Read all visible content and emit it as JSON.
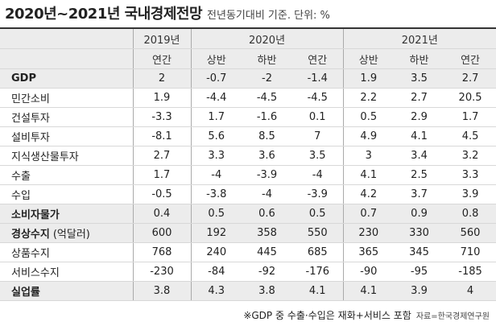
{
  "header": {
    "title": "2020년~2021년 국내경제전망",
    "subtitle": "전년동기대비 기준. 단위: %"
  },
  "table": {
    "years": [
      "2019년",
      "2020년",
      "2021년"
    ],
    "periods": [
      "연간",
      "상반",
      "하반",
      "연간",
      "상반",
      "하반",
      "연간"
    ],
    "rows": [
      {
        "label": "GDP",
        "bold": true,
        "values": [
          2,
          -0.7,
          -2,
          -1.4,
          1.9,
          3.5,
          2.7
        ]
      },
      {
        "label": "민간소비",
        "values": [
          1.9,
          -4.4,
          -4.5,
          -4.5,
          2.2,
          2.7,
          20.5
        ]
      },
      {
        "label": "건설투자",
        "values": [
          -3.3,
          1.7,
          -1.6,
          0.1,
          0.5,
          2.9,
          1.7
        ]
      },
      {
        "label": "설비투자",
        "values": [
          -8.1,
          5.6,
          8.5,
          7,
          4.9,
          4.1,
          4.5
        ]
      },
      {
        "label": "지식생산물투자",
        "values": [
          2.7,
          3.3,
          3.6,
          3.5,
          3,
          3.4,
          3.2
        ]
      },
      {
        "label": "수출",
        "values": [
          1.7,
          -4,
          -3.9,
          -4,
          4.1,
          2.5,
          3.3
        ]
      },
      {
        "label": "수입",
        "values": [
          -0.5,
          -3.8,
          -4,
          -3.9,
          4.2,
          3.7,
          3.9
        ]
      },
      {
        "label": "소비자물가",
        "bold": true,
        "values": [
          0.4,
          0.5,
          0.6,
          0.5,
          0.7,
          0.9,
          0.8
        ]
      },
      {
        "label": "경상수지",
        "unit": "(억달러)",
        "bold": true,
        "values": [
          600,
          192,
          358,
          550,
          230,
          330,
          560
        ]
      },
      {
        "label": "상품수지",
        "values": [
          768,
          240,
          445,
          685,
          365,
          345,
          710
        ]
      },
      {
        "label": "서비스수지",
        "values": [
          -230,
          -84,
          -92,
          -176,
          -90,
          -95,
          -185
        ]
      },
      {
        "label": "실업률",
        "bold": true,
        "values": [
          3.8,
          4.3,
          3.8,
          4.1,
          4.1,
          3.9,
          4
        ]
      }
    ]
  },
  "footer": {
    "note": "※GDP 중 수출·수입은 재화+서비스 포함",
    "source": "자료=한국경제연구원"
  }
}
